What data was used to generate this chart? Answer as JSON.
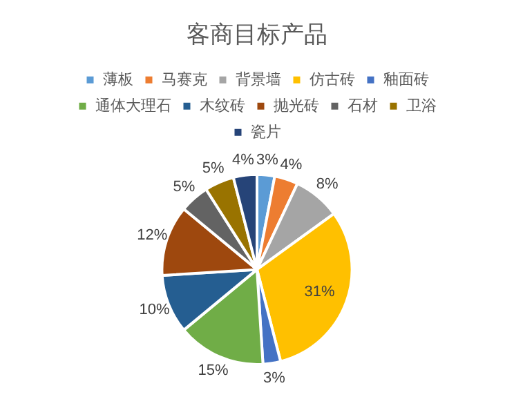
{
  "chart_data": {
    "type": "pie",
    "title": "客商目标产品",
    "categories": [
      "薄板",
      "马赛克",
      "背景墙",
      "仿古砖",
      "釉面砖",
      "通体大理石",
      "木纹砖",
      "抛光砖",
      "石材",
      "卫浴",
      "瓷片"
    ],
    "values": [
      3,
      4,
      8,
      31,
      3,
      15,
      10,
      12,
      5,
      5,
      4
    ],
    "colors": [
      "#5b9bd5",
      "#ed7d31",
      "#a5a5a5",
      "#ffc000",
      "#4472c4",
      "#70ad47",
      "#255e91",
      "#9e480e",
      "#636363",
      "#997300",
      "#264478"
    ],
    "value_labels": [
      "3%",
      "4%",
      "8%",
      "31%",
      "3%",
      "15%",
      "10%",
      "12%",
      "5%",
      "5%",
      "4%"
    ],
    "legend": "top"
  }
}
